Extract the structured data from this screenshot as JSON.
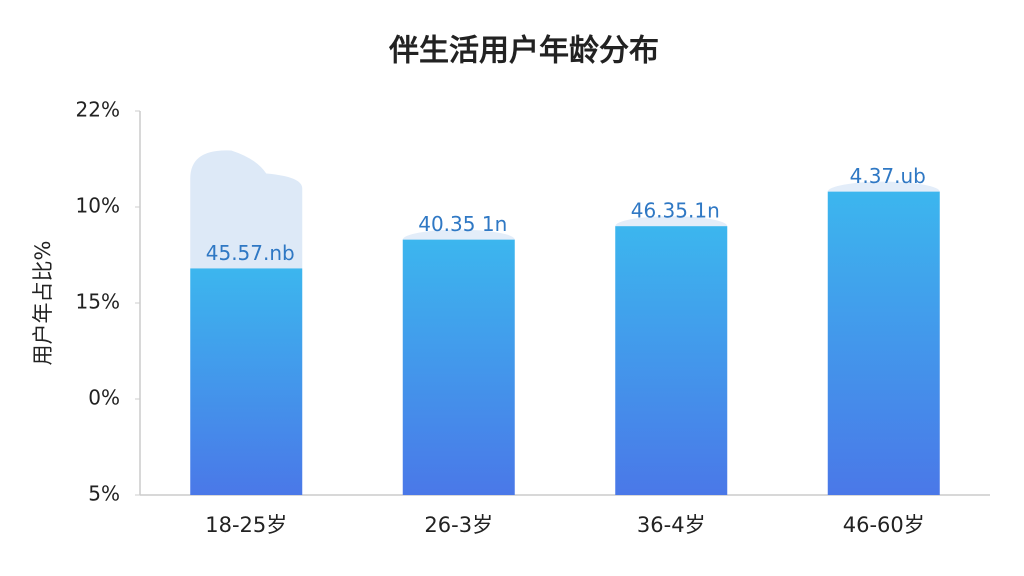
{
  "chart_data": {
    "type": "bar",
    "title": "伴生活用户年龄分布",
    "y_label": "用户年占比%",
    "categories": [
      "18-25岁",
      "26-3岁",
      "36-4岁",
      "46-60岁"
    ],
    "values": [
      2.36,
      2.66,
      2.8,
      3.16
    ],
    "annotations": [
      "45.57.nb",
      "40.35 1n",
      "46.35.1n",
      "4.37.ub"
    ],
    "color": [
      "#3cb6ee",
      "#4a78e8"
    ],
    "ylim": [
      0,
      4
    ],
    "yticks": [
      {
        "value": 0,
        "label": "5%"
      },
      {
        "value": 1,
        "label": "0%"
      },
      {
        "value": 2,
        "label": "15%"
      },
      {
        "value": 3,
        "label": "10%"
      },
      {
        "value": 4,
        "label": "22%"
      }
    ],
    "grid": false
  }
}
